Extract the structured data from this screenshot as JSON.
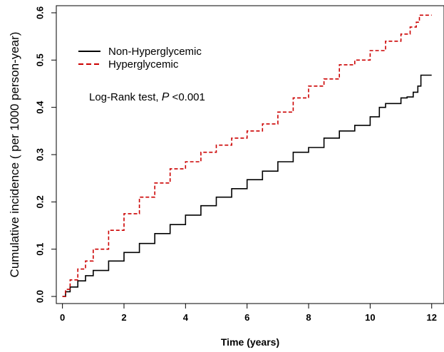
{
  "chart_data": {
    "type": "line",
    "title": "",
    "xlabel": "Time (years)",
    "ylabel": "Cumulative incidence ( per 1000 person-year)",
    "xlim": [
      -0.2,
      12.4
    ],
    "ylim": [
      -0.015,
      0.615
    ],
    "x_ticks": [
      0,
      2,
      4,
      6,
      8,
      10,
      12
    ],
    "y_ticks": [
      0.0,
      0.1,
      0.2,
      0.3,
      0.4,
      0.5,
      0.6
    ],
    "x_tick_labels": [
      "0",
      "2",
      "4",
      "6",
      "8",
      "10",
      "12"
    ],
    "y_tick_labels": [
      "0.0",
      "0.1",
      "0.2",
      "0.3",
      "0.4",
      "0.5",
      "0.6"
    ],
    "grid": false,
    "legend_position": "top-left",
    "annotation": {
      "prefix": "Log-Rank test,  ",
      "p_symbol": "P",
      "suffix": " <0.001"
    },
    "series": [
      {
        "name": "Non-Hyperglycemic",
        "color": "#000000",
        "dash": "solid",
        "points": [
          [
            0,
            0.0
          ],
          [
            0.1,
            0.01
          ],
          [
            0.25,
            0.02
          ],
          [
            0.5,
            0.033
          ],
          [
            0.75,
            0.044
          ],
          [
            1,
            0.055
          ],
          [
            1.5,
            0.075
          ],
          [
            2,
            0.093
          ],
          [
            2.5,
            0.112
          ],
          [
            3,
            0.133
          ],
          [
            3.5,
            0.152
          ],
          [
            4,
            0.172
          ],
          [
            4.5,
            0.192
          ],
          [
            5,
            0.21
          ],
          [
            5.5,
            0.228
          ],
          [
            6,
            0.247
          ],
          [
            6.5,
            0.265
          ],
          [
            7,
            0.285
          ],
          [
            7.5,
            0.305
          ],
          [
            8,
            0.315
          ],
          [
            8.5,
            0.335
          ],
          [
            9,
            0.35
          ],
          [
            9.5,
            0.362
          ],
          [
            10,
            0.38
          ],
          [
            10.3,
            0.4
          ],
          [
            10.5,
            0.408
          ],
          [
            11,
            0.42
          ],
          [
            11.2,
            0.422
          ],
          [
            11.4,
            0.432
          ],
          [
            11.55,
            0.445
          ],
          [
            11.65,
            0.468
          ],
          [
            12,
            0.468
          ]
        ]
      },
      {
        "name": "Hyperglycemic",
        "color": "#cc0000",
        "dash": "dashed",
        "points": [
          [
            0,
            0.0
          ],
          [
            0.1,
            0.015
          ],
          [
            0.25,
            0.035
          ],
          [
            0.5,
            0.058
          ],
          [
            0.75,
            0.075
          ],
          [
            1,
            0.1
          ],
          [
            1.5,
            0.14
          ],
          [
            2,
            0.175
          ],
          [
            2.5,
            0.21
          ],
          [
            3,
            0.24
          ],
          [
            3.5,
            0.27
          ],
          [
            4,
            0.285
          ],
          [
            4.5,
            0.305
          ],
          [
            5,
            0.32
          ],
          [
            5.5,
            0.335
          ],
          [
            6,
            0.35
          ],
          [
            6.5,
            0.365
          ],
          [
            7,
            0.39
          ],
          [
            7.5,
            0.42
          ],
          [
            8,
            0.445
          ],
          [
            8.5,
            0.46
          ],
          [
            9,
            0.49
          ],
          [
            9.5,
            0.5
          ],
          [
            10,
            0.52
          ],
          [
            10.5,
            0.54
          ],
          [
            11,
            0.555
          ],
          [
            11.3,
            0.57
          ],
          [
            11.5,
            0.58
          ],
          [
            11.6,
            0.595
          ],
          [
            12,
            0.595
          ]
        ]
      }
    ]
  }
}
